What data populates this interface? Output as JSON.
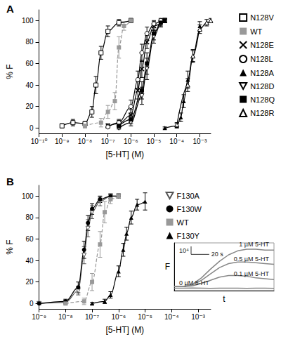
{
  "chart_data": [
    {
      "type": "line",
      "title": "A",
      "xlabel": "[5-HT] (M)",
      "ylabel": "% F",
      "log": "x",
      "legend": "right",
      "xlim": [
        1e-10,
        0.003
      ],
      "xticks": [
        {
          "value": 1e-10,
          "label": "10⁻¹⁰"
        },
        {
          "value": 1e-09,
          "label": "10⁻⁹"
        },
        {
          "value": 1e-08,
          "label": "10⁻⁸"
        },
        {
          "value": 1e-07,
          "label": "10⁻⁷"
        },
        {
          "value": 1e-06,
          "label": "10⁻⁶"
        },
        {
          "value": 1e-05,
          "label": "10⁻⁵"
        },
        {
          "value": 0.0001,
          "label": "10⁻⁴"
        },
        {
          "value": 0.001,
          "label": "10⁻³"
        }
      ],
      "ylim": [
        -5,
        110
      ],
      "yticks": [
        0,
        20,
        40,
        60,
        80,
        100
      ],
      "series": [
        {
          "name": "N128V",
          "color": "#000000",
          "marker": "square-open",
          "line_style": "solid",
          "x": [
            1e-09,
            3e-09,
            1e-08,
            2e-08,
            3e-08,
            5e-08,
            1e-07,
            3e-07,
            1e-06
          ],
          "values": [
            2,
            5,
            4,
            15,
            40,
            70,
            90,
            98,
            100
          ],
          "errors": [
            2,
            3,
            2,
            5,
            8,
            6,
            5,
            3,
            2
          ]
        },
        {
          "name": "WT",
          "color": "#999999",
          "marker": "square",
          "line_style": "dashed",
          "x": [
            1e-08,
            5e-08,
            1e-07,
            2e-07,
            3e-07,
            5e-07,
            1e-06
          ],
          "values": [
            2,
            5,
            15,
            25,
            75,
            95,
            100
          ],
          "errors": [
            2,
            4,
            6,
            8,
            10,
            4,
            2
          ]
        },
        {
          "name": "N128E",
          "color": "#000000",
          "marker": "cross",
          "line_style": "solid",
          "x": [
            1e-07,
            3e-07,
            1e-06,
            2e-06,
            3e-06,
            5e-06,
            1e-05,
            3e-05
          ],
          "values": [
            2,
            4,
            12,
            35,
            55,
            80,
            95,
            100
          ],
          "errors": [
            2,
            3,
            5,
            8,
            8,
            6,
            4,
            2
          ]
        },
        {
          "name": "N128L",
          "color": "#000000",
          "marker": "circle-open",
          "line_style": "solid",
          "x": [
            1e-07,
            3e-07,
            1e-06,
            2e-06,
            3e-06,
            5e-06,
            1e-05,
            2e-05
          ],
          "values": [
            1,
            5,
            20,
            45,
            70,
            88,
            97,
            100
          ],
          "errors": [
            1,
            3,
            6,
            8,
            8,
            6,
            3,
            2
          ]
        },
        {
          "name": "N128A",
          "color": "#000000",
          "marker": "triangle",
          "line_style": "solid",
          "x": [
            3e-05,
            0.0001,
            0.00015,
            0.0002,
            0.0003,
            0.0005,
            0.001
          ],
          "values": [
            0,
            2,
            10,
            25,
            45,
            67,
            95
          ],
          "errors": [
            1,
            2,
            4,
            6,
            8,
            6,
            4
          ]
        },
        {
          "name": "N128D",
          "color": "#000000",
          "marker": "triangle-down-open",
          "line_style": "solid",
          "x": [
            3e-07,
            1e-06,
            3e-06,
            5e-06,
            1e-05,
            2e-05,
            3e-05
          ],
          "values": [
            0,
            5,
            30,
            55,
            85,
            97,
            100
          ],
          "errors": [
            1,
            3,
            8,
            10,
            6,
            3,
            2
          ]
        },
        {
          "name": "N128Q",
          "color": "#000000",
          "marker": "square",
          "line_style": "solid",
          "x": [
            3e-07,
            1e-06,
            3e-06,
            5e-06,
            1e-05,
            2e-05,
            3e-05
          ],
          "values": [
            2,
            8,
            35,
            60,
            88,
            98,
            100
          ],
          "errors": [
            2,
            4,
            8,
            10,
            6,
            3,
            2
          ]
        },
        {
          "name": "N128R",
          "color": "#000000",
          "marker": "triangle-open",
          "line_style": "solid",
          "x": [
            0.0001,
            0.0003,
            0.0005,
            0.001,
            0.002,
            0.003
          ],
          "values": [
            3,
            40,
            67,
            92,
            98,
            100
          ],
          "errors": [
            2,
            6,
            5,
            4,
            3,
            2
          ]
        }
      ]
    },
    {
      "type": "line",
      "title": "B",
      "xlabel": "[5-HT] (M)",
      "ylabel": "% F",
      "log": "x",
      "legend": "top-right",
      "xlim": [
        1e-09,
        0.003
      ],
      "xticks": [
        {
          "value": 1e-09,
          "label": "10⁻⁹"
        },
        {
          "value": 1e-08,
          "label": "10⁻⁸"
        },
        {
          "value": 1e-07,
          "label": "10⁻⁷"
        },
        {
          "value": 1e-06,
          "label": "10⁻⁶"
        },
        {
          "value": 1e-05,
          "label": "10⁻⁵"
        },
        {
          "value": 0.0001,
          "label": "10⁻⁴"
        },
        {
          "value": 0.001,
          "label": "10⁻³"
        }
      ],
      "ylim": [
        -5,
        110
      ],
      "yticks": [
        0,
        20,
        40,
        60,
        80,
        100
      ],
      "series": [
        {
          "name": "F130A",
          "color": "#555555",
          "marker": "triangle-down-open",
          "line_style": "solid",
          "x": [
            1e-09,
            1e-08,
            3e-08,
            5e-08,
            7e-08,
            1e-07,
            2e-07,
            5e-07,
            1e-06
          ],
          "values": [
            0,
            1,
            12,
            45,
            70,
            85,
            95,
            100,
            100
          ],
          "errors": [
            1,
            2,
            4,
            8,
            8,
            6,
            4,
            2,
            2
          ]
        },
        {
          "name": "F130W",
          "color": "#000000",
          "marker": "circle",
          "line_style": "solid",
          "x": [
            1e-09,
            1e-08,
            3e-08,
            5e-08,
            7e-08,
            1e-07,
            2e-07,
            5e-07,
            1e-06
          ],
          "values": [
            0,
            2,
            15,
            50,
            75,
            88,
            97,
            100,
            100
          ],
          "errors": [
            1,
            2,
            5,
            8,
            7,
            5,
            3,
            2,
            2
          ]
        },
        {
          "name": "WT",
          "color": "#999999",
          "marker": "square",
          "line_style": "dashed",
          "x": [
            1e-08,
            5e-08,
            1e-07,
            2e-07,
            3e-07,
            5e-07,
            1e-06
          ],
          "values": [
            0,
            2,
            20,
            55,
            85,
            97,
            100
          ],
          "errors": [
            1,
            3,
            8,
            12,
            10,
            4,
            2
          ]
        },
        {
          "name": "F130Y",
          "color": "#000000",
          "marker": "triangle",
          "line_style": "solid",
          "x": [
            1e-07,
            3e-07,
            5e-07,
            1e-06,
            1.5e-06,
            2e-06,
            3e-06,
            5e-06,
            1e-05
          ],
          "values": [
            0,
            2,
            8,
            30,
            50,
            65,
            80,
            92,
            95
          ],
          "errors": [
            1,
            2,
            3,
            5,
            6,
            6,
            6,
            5,
            8
          ]
        }
      ]
    },
    {
      "type": "line",
      "xlabel": "t",
      "ylabel": "F",
      "tick_labels": false,
      "xlim": [
        0,
        110
      ],
      "ylim": [
        0,
        60000
      ],
      "x": [
        0,
        10,
        20,
        30,
        40,
        50,
        60,
        70,
        80,
        90,
        100,
        110
      ],
      "scale_bars": {
        "y": {
          "value": 10000,
          "label": "10⁴"
        },
        "x": {
          "value": 20,
          "label": "20 s"
        }
      },
      "series": [
        {
          "name": "1 µM 5-HT",
          "color": "#888888",
          "values": [
            5000,
            5000,
            8000,
            16000,
            27000,
            37000,
            45000,
            50000,
            52000,
            52000,
            51000,
            51000
          ]
        },
        {
          "name": "0.5 µM 5-HT",
          "color": "#888888",
          "values": [
            5000,
            5000,
            7000,
            13000,
            21000,
            29000,
            34000,
            36000,
            36000,
            35000,
            34000,
            33000
          ]
        },
        {
          "name": "0.1 µM 5-HT",
          "color": "#888888",
          "values": [
            5000,
            5000,
            6000,
            9000,
            13000,
            17000,
            19000,
            19000,
            18000,
            16000,
            15000,
            14000
          ]
        },
        {
          "name": "0 µM 5-HT",
          "color": "#888888",
          "values": [
            3000,
            3000,
            3200,
            3000,
            2800,
            3000,
            3100,
            3000,
            2900,
            3000,
            3000,
            2900
          ]
        }
      ]
    }
  ]
}
